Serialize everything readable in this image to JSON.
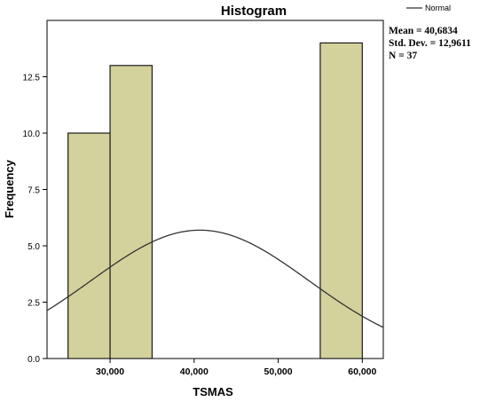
{
  "chart_data": {
    "type": "bar",
    "title": "Histogram",
    "xlabel": "TSMAS",
    "ylabel": "Frequency",
    "xlim": [
      22500,
      62500
    ],
    "ylim": [
      0,
      15
    ],
    "x_ticks": [
      30000,
      40000,
      50000,
      60000
    ],
    "x_tick_labels": [
      "30,000",
      "40,000",
      "50,000",
      "60,000"
    ],
    "y_ticks": [
      0,
      2.5,
      5,
      7.5,
      10,
      12.5
    ],
    "y_tick_labels": [
      "0.0",
      "2.5",
      "5.0",
      "7.5",
      "10.0",
      "12.5"
    ],
    "grid": false,
    "bins": [
      {
        "start": 25000,
        "end": 30000,
        "count": 10
      },
      {
        "start": 30000,
        "end": 35000,
        "count": 13
      },
      {
        "start": 55000,
        "end": 60000,
        "count": 14
      }
    ],
    "normal_curve": {
      "name": "Normal",
      "mean": 40683.4,
      "std_dev": 12961.1,
      "n": 37,
      "bin_width": 5000
    },
    "legend": {
      "position": "top-right",
      "label": "Normal"
    },
    "stats": [
      "Mean = 40,6834",
      "Std. Dev. = 12,9611",
      "N = 37"
    ],
    "colors": {
      "bar_fill": "#d4d29c",
      "bar_stroke": "#1a1a1a",
      "curve": "#333333",
      "axis": "#000000"
    }
  }
}
